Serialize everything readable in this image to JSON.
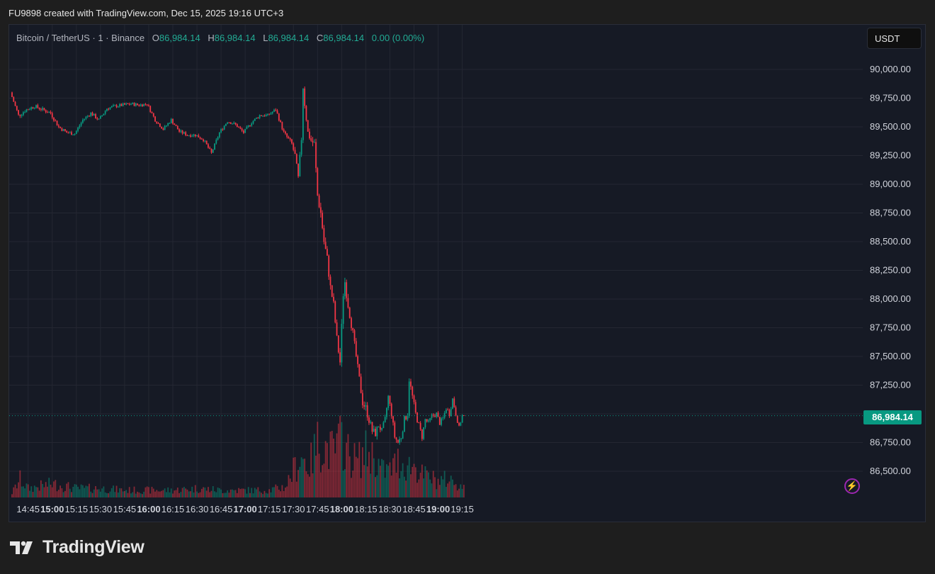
{
  "header": {
    "attribution": "FU9898 created with TradingView.com, Dec 15, 2025 19:16 UTC+3"
  },
  "legend": {
    "symbol": "Bitcoin / TetherUS · 1 · Binance",
    "o_label": "O",
    "o_value": "86,984.14",
    "h_label": "H",
    "h_value": "86,984.14",
    "l_label": "L",
    "l_value": "86,984.14",
    "c_label": "C",
    "c_value": "86,984.14",
    "change": "0.00 (0.00%)"
  },
  "currency_button": "USDT",
  "last_price_label": "86,984.14",
  "alert_icon": "lightning-icon",
  "brand": {
    "name": "TradingView",
    "logo_icon": "tradingview-logo-icon"
  },
  "colors": {
    "up": "#089981",
    "down": "#f23645",
    "background": "#161a25",
    "grid": "#242732"
  },
  "chart_data": {
    "type": "candlestick",
    "interval": "1",
    "last_price": 86984.14,
    "y_ticks": [
      "90,000.00",
      "89,750.00",
      "89,500.00",
      "89,250.00",
      "89,000.00",
      "88,750.00",
      "88,500.00",
      "88,250.00",
      "88,000.00",
      "87,750.00",
      "87,500.00",
      "87,250.00",
      "87,000.00",
      "86,750.00",
      "86,500.00"
    ],
    "y_tick_values": [
      90000,
      89750,
      89500,
      89250,
      89000,
      88750,
      88500,
      88250,
      88000,
      87750,
      87500,
      87250,
      87000,
      86750,
      86500
    ],
    "x_ticks": [
      {
        "label": "14:45",
        "bold": false
      },
      {
        "label": "15:00",
        "bold": true
      },
      {
        "label": "15:15",
        "bold": false
      },
      {
        "label": "15:30",
        "bold": false
      },
      {
        "label": "15:45",
        "bold": false
      },
      {
        "label": "16:00",
        "bold": true
      },
      {
        "label": "16:15",
        "bold": false
      },
      {
        "label": "16:30",
        "bold": false
      },
      {
        "label": "16:45",
        "bold": false
      },
      {
        "label": "17:00",
        "bold": true
      },
      {
        "label": "17:15",
        "bold": false
      },
      {
        "label": "17:30",
        "bold": false
      },
      {
        "label": "17:45",
        "bold": false
      },
      {
        "label": "18:00",
        "bold": true
      },
      {
        "label": "18:15",
        "bold": false
      },
      {
        "label": "18:30",
        "bold": false
      },
      {
        "label": "18:45",
        "bold": false
      },
      {
        "label": "19:00",
        "bold": true
      },
      {
        "label": "19:15",
        "bold": false
      }
    ],
    "time_range": [
      "14:35",
      "19:16"
    ],
    "price_path": [
      [
        "14:35",
        89800
      ],
      [
        "14:40",
        89600
      ],
      [
        "14:45",
        89650
      ],
      [
        "14:50",
        89680
      ],
      [
        "14:55",
        89650
      ],
      [
        "15:00",
        89620
      ],
      [
        "15:05",
        89500
      ],
      [
        "15:10",
        89450
      ],
      [
        "15:15",
        89440
      ],
      [
        "15:20",
        89560
      ],
      [
        "15:25",
        89620
      ],
      [
        "15:30",
        89560
      ],
      [
        "15:35",
        89660
      ],
      [
        "15:40",
        89680
      ],
      [
        "15:45",
        89690
      ],
      [
        "15:50",
        89700
      ],
      [
        "15:55",
        89690
      ],
      [
        "16:00",
        89700
      ],
      [
        "16:05",
        89560
      ],
      [
        "16:10",
        89480
      ],
      [
        "16:15",
        89560
      ],
      [
        "16:20",
        89460
      ],
      [
        "16:25",
        89430
      ],
      [
        "16:30",
        89430
      ],
      [
        "16:35",
        89390
      ],
      [
        "16:40",
        89270
      ],
      [
        "16:45",
        89450
      ],
      [
        "16:50",
        89550
      ],
      [
        "16:55",
        89520
      ],
      [
        "17:00",
        89450
      ],
      [
        "17:05",
        89540
      ],
      [
        "17:10",
        89600
      ],
      [
        "17:15",
        89600
      ],
      [
        "17:20",
        89650
      ],
      [
        "17:25",
        89450
      ],
      [
        "17:30",
        89350
      ],
      [
        "17:32",
        89250
      ],
      [
        "17:34",
        89050
      ],
      [
        "17:36",
        89400
      ],
      [
        "17:37",
        89850
      ],
      [
        "17:38",
        89700
      ],
      [
        "17:40",
        89450
      ],
      [
        "17:42",
        89380
      ],
      [
        "17:44",
        89350
      ],
      [
        "17:46",
        88900
      ],
      [
        "17:48",
        88750
      ],
      [
        "17:50",
        88500
      ],
      [
        "17:52",
        88350
      ],
      [
        "17:54",
        88100
      ],
      [
        "17:56",
        87950
      ],
      [
        "17:58",
        87650
      ],
      [
        "18:00",
        87450
      ],
      [
        "18:02",
        88050
      ],
      [
        "18:03",
        88150
      ],
      [
        "18:05",
        87950
      ],
      [
        "18:08",
        87700
      ],
      [
        "18:10",
        87500
      ],
      [
        "18:12",
        87300
      ],
      [
        "18:14",
        87100
      ],
      [
        "18:16",
        87050
      ],
      [
        "18:18",
        86950
      ],
      [
        "18:20",
        86850
      ],
      [
        "18:22",
        86830
      ],
      [
        "18:24",
        86900
      ],
      [
        "18:26",
        86850
      ],
      [
        "18:28",
        86950
      ],
      [
        "18:30",
        87150
      ],
      [
        "18:32",
        87000
      ],
      [
        "18:34",
        86800
      ],
      [
        "18:36",
        86750
      ],
      [
        "18:38",
        86800
      ],
      [
        "18:40",
        86950
      ],
      [
        "18:42",
        87000
      ],
      [
        "18:43",
        87300
      ],
      [
        "18:45",
        87150
      ],
      [
        "18:47",
        87000
      ],
      [
        "18:49",
        86900
      ],
      [
        "18:51",
        86800
      ],
      [
        "18:53",
        86950
      ],
      [
        "18:55",
        86920
      ],
      [
        "18:57",
        86980
      ],
      [
        "19:00",
        87000
      ],
      [
        "19:02",
        86920
      ],
      [
        "19:04",
        86960
      ],
      [
        "19:06",
        87050
      ],
      [
        "19:08",
        87000
      ],
      [
        "19:10",
        87130
      ],
      [
        "19:12",
        87000
      ],
      [
        "19:14",
        86880
      ],
      [
        "19:16",
        86984
      ]
    ],
    "volume_profile": [
      [
        "14:35",
        0.05
      ],
      [
        "14:40",
        0.2
      ],
      [
        "14:45",
        0.1
      ],
      [
        "15:00",
        0.15
      ],
      [
        "15:15",
        0.1
      ],
      [
        "15:30",
        0.1
      ],
      [
        "15:45",
        0.08
      ],
      [
        "16:00",
        0.08
      ],
      [
        "16:15",
        0.08
      ],
      [
        "16:30",
        0.1
      ],
      [
        "16:45",
        0.08
      ],
      [
        "17:00",
        0.08
      ],
      [
        "17:15",
        0.08
      ],
      [
        "17:25",
        0.12
      ],
      [
        "17:30",
        0.3
      ],
      [
        "17:35",
        0.45
      ],
      [
        "17:40",
        0.35
      ],
      [
        "17:45",
        0.6
      ],
      [
        "17:50",
        0.55
      ],
      [
        "17:55",
        0.5
      ],
      [
        "18:00",
        0.65
      ],
      [
        "18:05",
        0.45
      ],
      [
        "18:10",
        0.4
      ],
      [
        "18:15",
        0.5
      ],
      [
        "18:20",
        0.45
      ],
      [
        "18:25",
        0.3
      ],
      [
        "18:30",
        0.3
      ],
      [
        "18:35",
        0.4
      ],
      [
        "18:40",
        0.35
      ],
      [
        "18:45",
        0.35
      ],
      [
        "18:50",
        0.25
      ],
      [
        "18:55",
        0.22
      ],
      [
        "19:00",
        0.18
      ],
      [
        "19:05",
        0.2
      ],
      [
        "19:10",
        0.18
      ],
      [
        "19:16",
        0.1
      ]
    ]
  }
}
